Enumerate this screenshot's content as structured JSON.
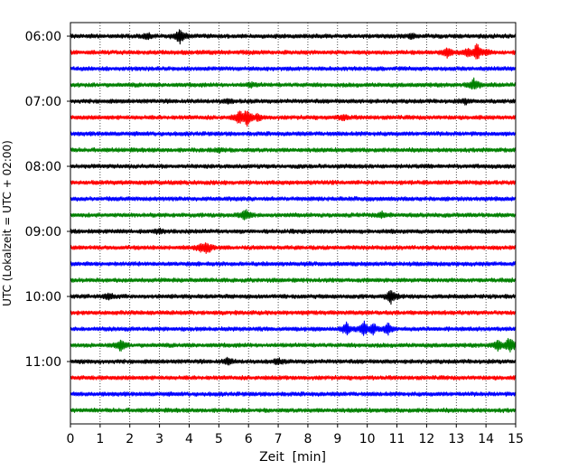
{
  "chart_data": {
    "type": "line",
    "title": "",
    "xlabel": "Zeit  [min]",
    "ylabel": "UTC (Lokalzeit = UTC + 02:00)",
    "xlim": [
      0,
      15
    ],
    "x_ticks": [
      "0",
      "1",
      "2",
      "3",
      "4",
      "5",
      "6",
      "7",
      "8",
      "9",
      "10",
      "11",
      "12",
      "13",
      "14",
      "15"
    ],
    "y_ticks": [
      "06:00",
      "07:00",
      "08:00",
      "09:00",
      "10:00",
      "11:00"
    ],
    "grid": "vertical dotted",
    "minutes_per_trace": 15,
    "trace_colors": [
      "#000000",
      "#ff0000",
      "#0000ff",
      "#008000"
    ],
    "traces": [
      {
        "start": "06:00",
        "events": [
          {
            "t": 3.7,
            "amp": 1.6
          },
          {
            "t": 2.6,
            "amp": 0.5
          },
          {
            "t": 11.5,
            "amp": 0.5
          }
        ]
      },
      {
        "start": "06:15",
        "events": [
          {
            "t": 12.7,
            "amp": 0.9
          },
          {
            "t": 13.4,
            "amp": 0.9
          },
          {
            "t": 13.7,
            "amp": 1.6
          },
          {
            "t": 14.0,
            "amp": 0.5
          }
        ]
      },
      {
        "start": "06:30",
        "events": []
      },
      {
        "start": "06:45",
        "events": [
          {
            "t": 6.1,
            "amp": 0.4
          },
          {
            "t": 13.6,
            "amp": 1.1
          }
        ]
      },
      {
        "start": "07:00",
        "events": [
          {
            "t": 5.3,
            "amp": 0.4
          },
          {
            "t": 13.3,
            "amp": 0.4
          }
        ]
      },
      {
        "start": "07:15",
        "events": [
          {
            "t": 5.7,
            "amp": 1.4
          },
          {
            "t": 5.95,
            "amp": 1.6
          },
          {
            "t": 6.3,
            "amp": 0.7
          },
          {
            "t": 9.2,
            "amp": 0.5
          }
        ]
      },
      {
        "start": "07:30",
        "events": []
      },
      {
        "start": "07:45",
        "events": [
          {
            "t": 5.0,
            "amp": 0.4
          }
        ]
      },
      {
        "start": "08:00",
        "events": []
      },
      {
        "start": "08:15",
        "events": []
      },
      {
        "start": "08:30",
        "events": []
      },
      {
        "start": "08:45",
        "events": [
          {
            "t": 5.9,
            "amp": 1.0
          },
          {
            "t": 10.5,
            "amp": 0.5
          }
        ]
      },
      {
        "start": "09:00",
        "events": [
          {
            "t": 3.0,
            "amp": 0.4
          }
        ]
      },
      {
        "start": "09:15",
        "events": [
          {
            "t": 4.6,
            "amp": 1.2
          },
          {
            "t": 4.4,
            "amp": 0.7
          }
        ]
      },
      {
        "start": "09:30",
        "events": []
      },
      {
        "start": "09:45",
        "events": []
      },
      {
        "start": "10:00",
        "events": [
          {
            "t": 1.3,
            "amp": 0.5
          },
          {
            "t": 10.8,
            "amp": 1.3
          }
        ]
      },
      {
        "start": "10:15",
        "events": []
      },
      {
        "start": "10:30",
        "events": [
          {
            "t": 9.3,
            "amp": 1.1
          },
          {
            "t": 9.9,
            "amp": 1.4
          },
          {
            "t": 10.2,
            "amp": 1.0
          },
          {
            "t": 10.7,
            "amp": 1.0
          }
        ]
      },
      {
        "start": "10:45",
        "events": [
          {
            "t": 1.7,
            "amp": 1.1
          },
          {
            "t": 14.4,
            "amp": 0.9
          },
          {
            "t": 14.8,
            "amp": 1.6
          }
        ]
      },
      {
        "start": "11:00",
        "events": [
          {
            "t": 5.3,
            "amp": 0.6
          },
          {
            "t": 7.0,
            "amp": 0.5
          }
        ]
      },
      {
        "start": "11:15",
        "events": []
      },
      {
        "start": "11:30",
        "events": []
      },
      {
        "start": "11:45",
        "events": []
      }
    ]
  }
}
